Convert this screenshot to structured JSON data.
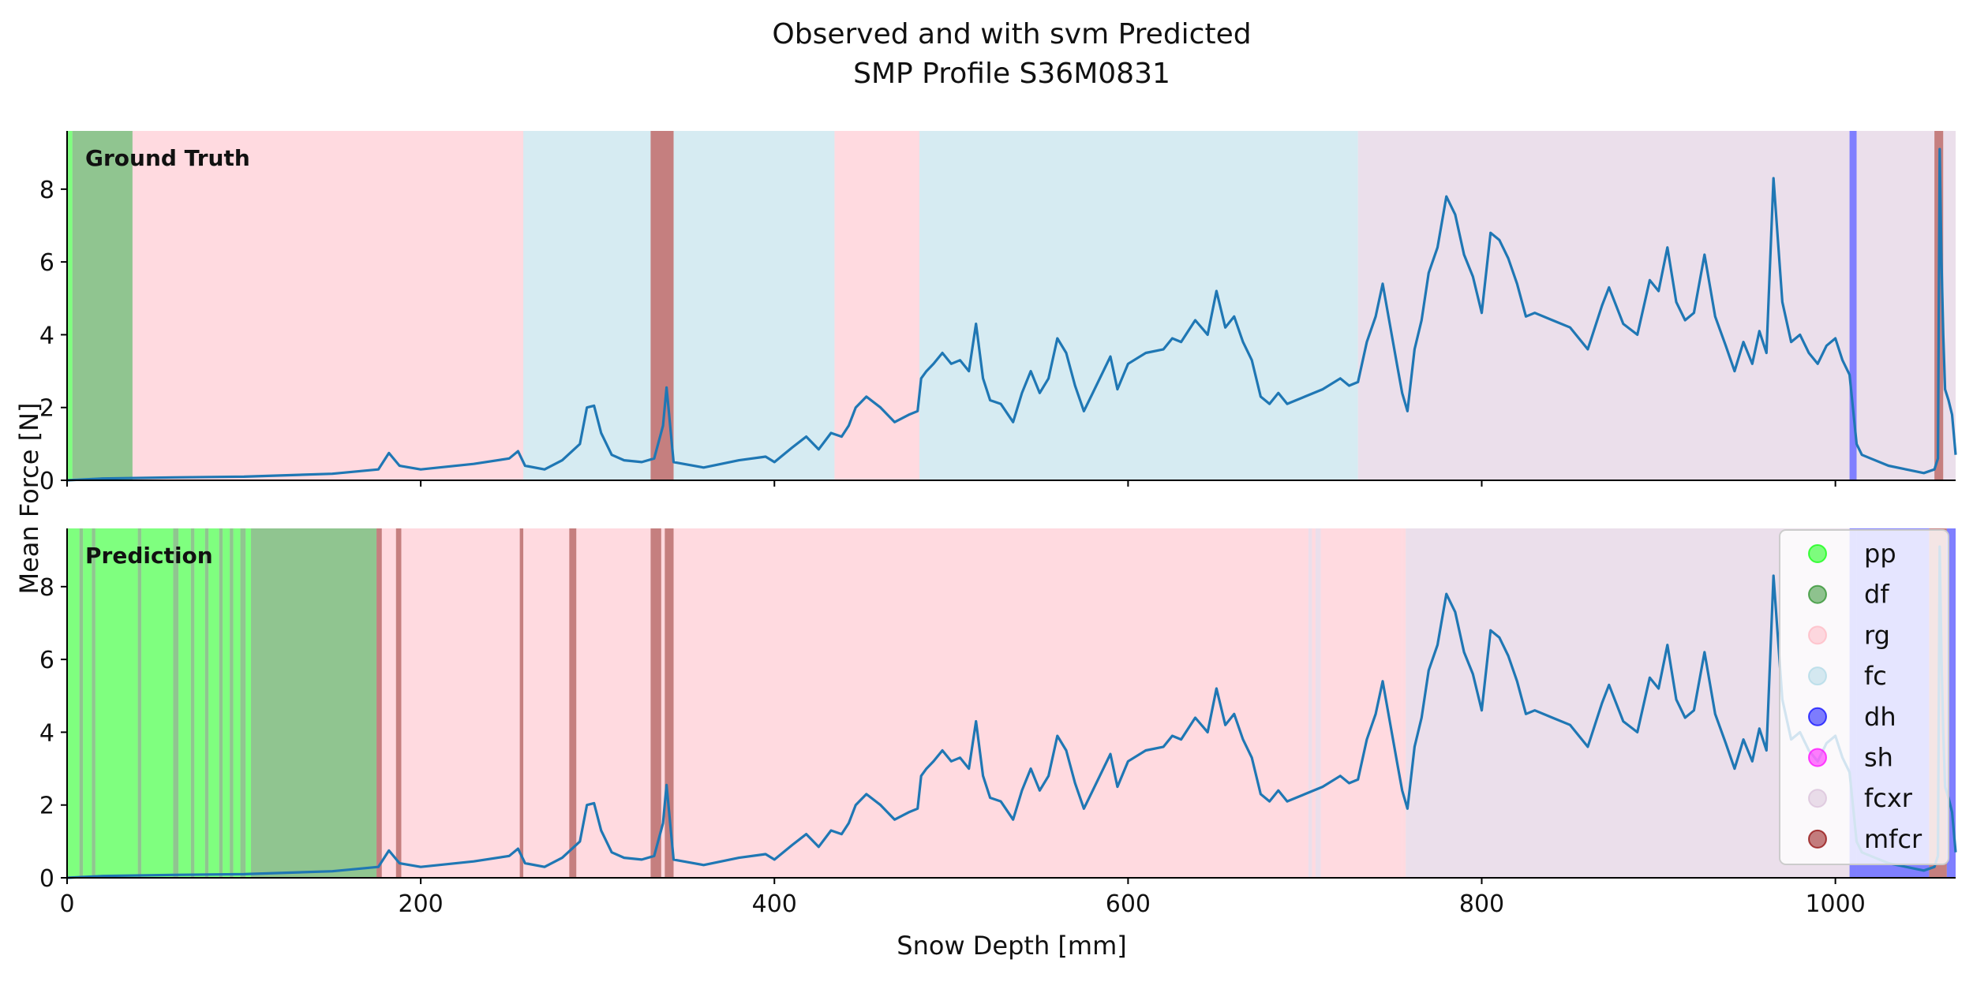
{
  "title_line1": "Observed and with svm Predicted",
  "title_line2": "SMP Profile S36M0831",
  "colors": {
    "pp": "#00ff00",
    "df": "#228b22",
    "rg": "#ffb6c1",
    "fc": "#add8e6",
    "dh": "#0000ff",
    "sh": "#ff00ff",
    "fcxr": "#d8bfd8",
    "mfcr": "#8b0000",
    "signal": "#1f77b4"
  },
  "chart_data": {
    "type": "line",
    "title": "Observed and with svm Predicted\nSMP Profile S36M0831",
    "xlabel": "Snow Depth [mm]",
    "ylabel": "Mean Force [N]",
    "xlim": [
      0,
      1068
    ],
    "ylim": [
      0,
      9.6
    ],
    "x_ticks": [
      0,
      200,
      400,
      600,
      800,
      1000
    ],
    "y_ticks": [
      0,
      2,
      4,
      6,
      8
    ],
    "legend": {
      "placement": "right",
      "entries": [
        "pp",
        "df",
        "rg",
        "fc",
        "dh",
        "sh",
        "fcxr",
        "mfcr"
      ]
    },
    "panels": [
      {
        "label": "Ground Truth",
        "segments": [
          {
            "start": 0,
            "end": 3,
            "class": "pp"
          },
          {
            "start": 3,
            "end": 37,
            "class": "df"
          },
          {
            "start": 37,
            "end": 258,
            "class": "rg"
          },
          {
            "start": 258,
            "end": 330,
            "class": "fc"
          },
          {
            "start": 330,
            "end": 343,
            "class": "mfcr"
          },
          {
            "start": 343,
            "end": 434,
            "class": "fc"
          },
          {
            "start": 434,
            "end": 482,
            "class": "rg"
          },
          {
            "start": 482,
            "end": 730,
            "class": "fc"
          },
          {
            "start": 730,
            "end": 1008,
            "class": "fcxr"
          },
          {
            "start": 1008,
            "end": 1012,
            "class": "dh"
          },
          {
            "start": 1012,
            "end": 1056,
            "class": "fcxr"
          },
          {
            "start": 1056,
            "end": 1061,
            "class": "mfcr"
          },
          {
            "start": 1061,
            "end": 1068,
            "class": "fcxr"
          }
        ]
      },
      {
        "label": "Prediction",
        "segments": [
          {
            "start": 0,
            "end": 7,
            "class": "pp"
          },
          {
            "start": 7,
            "end": 9,
            "class": "df"
          },
          {
            "start": 9,
            "end": 14,
            "class": "pp"
          },
          {
            "start": 14,
            "end": 16,
            "class": "df"
          },
          {
            "start": 16,
            "end": 40,
            "class": "pp"
          },
          {
            "start": 40,
            "end": 42,
            "class": "df"
          },
          {
            "start": 42,
            "end": 60,
            "class": "pp"
          },
          {
            "start": 60,
            "end": 63,
            "class": "df"
          },
          {
            "start": 63,
            "end": 70,
            "class": "pp"
          },
          {
            "start": 70,
            "end": 72,
            "class": "df"
          },
          {
            "start": 72,
            "end": 78,
            "class": "pp"
          },
          {
            "start": 78,
            "end": 80,
            "class": "df"
          },
          {
            "start": 80,
            "end": 86,
            "class": "pp"
          },
          {
            "start": 86,
            "end": 88,
            "class": "df"
          },
          {
            "start": 88,
            "end": 92,
            "class": "pp"
          },
          {
            "start": 92,
            "end": 94,
            "class": "df"
          },
          {
            "start": 94,
            "end": 98,
            "class": "pp"
          },
          {
            "start": 98,
            "end": 101,
            "class": "df"
          },
          {
            "start": 101,
            "end": 104,
            "class": "pp"
          },
          {
            "start": 104,
            "end": 175,
            "class": "df"
          },
          {
            "start": 175,
            "end": 178,
            "class": "mfcr"
          },
          {
            "start": 178,
            "end": 186,
            "class": "rg"
          },
          {
            "start": 186,
            "end": 189,
            "class": "mfcr"
          },
          {
            "start": 189,
            "end": 256,
            "class": "rg"
          },
          {
            "start": 256,
            "end": 258,
            "class": "mfcr"
          },
          {
            "start": 258,
            "end": 284,
            "class": "rg"
          },
          {
            "start": 284,
            "end": 288,
            "class": "mfcr"
          },
          {
            "start": 288,
            "end": 330,
            "class": "rg"
          },
          {
            "start": 330,
            "end": 336,
            "class": "mfcr"
          },
          {
            "start": 336,
            "end": 338,
            "class": "rg"
          },
          {
            "start": 338,
            "end": 343,
            "class": "mfcr"
          },
          {
            "start": 343,
            "end": 702,
            "class": "rg"
          },
          {
            "start": 702,
            "end": 704,
            "class": "fcxr"
          },
          {
            "start": 704,
            "end": 706,
            "class": "rg"
          },
          {
            "start": 706,
            "end": 709,
            "class": "fcxr"
          },
          {
            "start": 709,
            "end": 755,
            "class": "rg"
          },
          {
            "start": 755,
            "end": 757,
            "class": "rg"
          },
          {
            "start": 757,
            "end": 1008,
            "class": "fcxr"
          },
          {
            "start": 1008,
            "end": 1012,
            "class": "dh"
          },
          {
            "start": 1012,
            "end": 1053,
            "class": "dh"
          },
          {
            "start": 1053,
            "end": 1063,
            "class": "mfcr"
          },
          {
            "start": 1063,
            "end": 1066,
            "class": "dh"
          },
          {
            "start": 1066,
            "end": 1068,
            "class": "dh"
          }
        ]
      }
    ],
    "series": [
      {
        "x": [
          0,
          20,
          60,
          100,
          150,
          176,
          182,
          188,
          200,
          230,
          250,
          255,
          259,
          270,
          280,
          290,
          294,
          298,
          302,
          308,
          315,
          325,
          332,
          337,
          339,
          343,
          360,
          380,
          395,
          400,
          410,
          418,
          425,
          432,
          438,
          442,
          446,
          452,
          460,
          468,
          476,
          481,
          483,
          486,
          490,
          495,
          500,
          505,
          510,
          514,
          518,
          522,
          528,
          535,
          540,
          545,
          550,
          555,
          560,
          565,
          570,
          575,
          580,
          585,
          590,
          594,
          600,
          610,
          620,
          625,
          630,
          638,
          645,
          650,
          655,
          660,
          665,
          670,
          675,
          680,
          685,
          690,
          700,
          710,
          720,
          725,
          730,
          735,
          740,
          744,
          748,
          752,
          755,
          758,
          762,
          766,
          770,
          775,
          780,
          785,
          790,
          795,
          800,
          805,
          810,
          815,
          820,
          825,
          830,
          840,
          850,
          860,
          868,
          872,
          880,
          888,
          895,
          900,
          905,
          910,
          915,
          920,
          926,
          932,
          938,
          943,
          948,
          953,
          957,
          961,
          965,
          970,
          975,
          980,
          985,
          990,
          995,
          1000,
          1004,
          1008,
          1012,
          1015,
          1020,
          1030,
          1040,
          1050,
          1056,
          1058,
          1059,
          1060,
          1061,
          1062,
          1064,
          1066,
          1068
        ],
        "y": [
          0.0,
          0.05,
          0.08,
          0.1,
          0.18,
          0.3,
          0.75,
          0.4,
          0.3,
          0.45,
          0.6,
          0.8,
          0.4,
          0.3,
          0.55,
          1.0,
          2.0,
          2.05,
          1.3,
          0.7,
          0.55,
          0.5,
          0.6,
          1.5,
          2.55,
          0.5,
          0.35,
          0.55,
          0.65,
          0.5,
          0.9,
          1.2,
          0.85,
          1.3,
          1.2,
          1.5,
          2.0,
          2.3,
          2.0,
          1.6,
          1.8,
          1.9,
          2.8,
          3.0,
          3.2,
          3.5,
          3.2,
          3.3,
          3.0,
          4.3,
          2.8,
          2.2,
          2.1,
          1.6,
          2.4,
          3.0,
          2.4,
          2.8,
          3.9,
          3.5,
          2.6,
          1.9,
          2.4,
          2.9,
          3.4,
          2.5,
          3.2,
          3.5,
          3.6,
          3.9,
          3.8,
          4.4,
          4.0,
          5.2,
          4.2,
          4.5,
          3.8,
          3.3,
          2.3,
          2.1,
          2.4,
          2.1,
          2.3,
          2.5,
          2.8,
          2.6,
          2.7,
          3.8,
          4.5,
          5.4,
          4.3,
          3.2,
          2.4,
          1.9,
          3.6,
          4.4,
          5.7,
          6.4,
          7.8,
          7.3,
          6.2,
          5.6,
          4.6,
          6.8,
          6.6,
          6.1,
          5.4,
          4.5,
          4.6,
          4.4,
          4.2,
          3.6,
          4.8,
          5.3,
          4.3,
          4.0,
          5.5,
          5.2,
          6.4,
          4.9,
          4.4,
          4.6,
          6.2,
          4.5,
          3.7,
          3.0,
          3.8,
          3.2,
          4.1,
          3.5,
          8.3,
          4.9,
          3.8,
          4.0,
          3.5,
          3.2,
          3.7,
          3.9,
          3.3,
          2.9,
          1.0,
          0.7,
          0.6,
          0.4,
          0.3,
          0.2,
          0.3,
          0.6,
          9.1,
          6.0,
          4.0,
          2.5,
          2.2,
          1.8,
          0.7
        ]
      }
    ]
  }
}
